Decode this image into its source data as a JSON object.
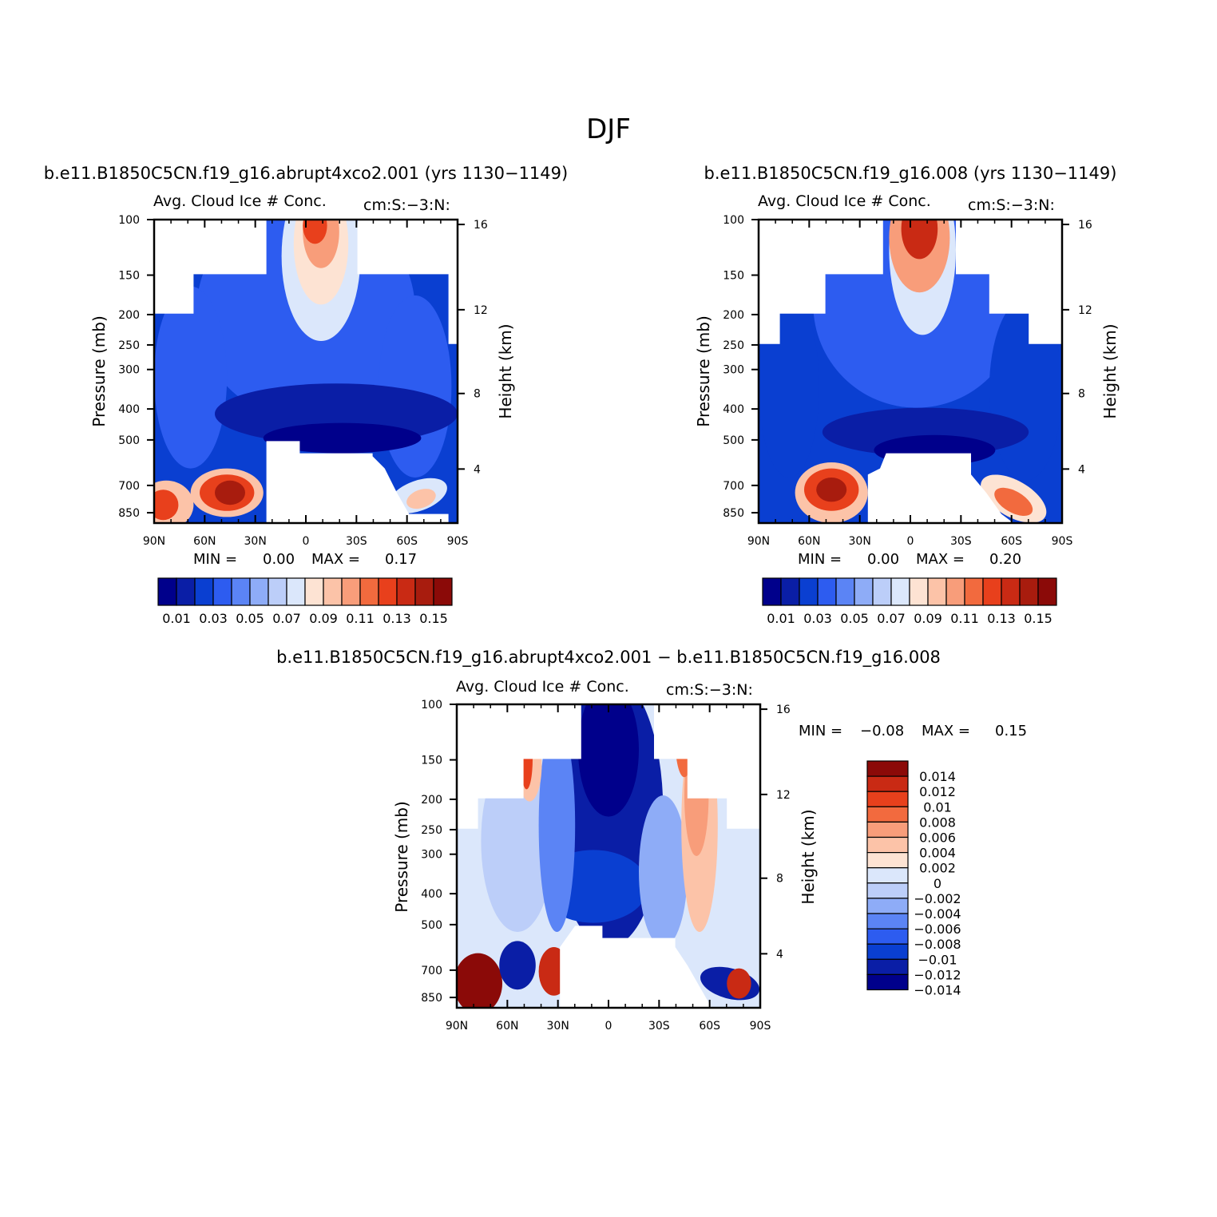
{
  "page_title": "DJF",
  "colors": {
    "seq": [
      "#00008b",
      "#0a1ea6",
      "#0a3fd1",
      "#2d5cf0",
      "#5b84f5",
      "#8eacf7",
      "#bccef9",
      "#dbe7fb",
      "#fde3d3",
      "#fcc3a8",
      "#f89d7a",
      "#f26a3e",
      "#e8401c",
      "#c92a14",
      "#a81c0e",
      "#8b0a08"
    ],
    "diff": [
      "#00008b",
      "#0a1ea6",
      "#0a3fd1",
      "#2d5cf0",
      "#5b84f5",
      "#8eacf7",
      "#bccef9",
      "#dbe7fb",
      "#fde3d3",
      "#fcc3a8",
      "#f89d7a",
      "#f26a3e",
      "#e8401c",
      "#c92a14",
      "#8b0a08"
    ]
  },
  "chart_data": [
    {
      "type": "heatmap",
      "id": "model_4xco2",
      "header": "b.e11.B1850C5CN.f19_g16.abrupt4xco2.001 (yrs 1130−1149)",
      "title": "Avg. Cloud Ice # Conc.",
      "units": "cm:S:−3:N:",
      "ylabel": "Pressure (mb)",
      "y2label": "Height (km)",
      "x_ticks": [
        "90N",
        "60N",
        "30N",
        "0",
        "30S",
        "60S",
        "90S"
      ],
      "y_ticks": [
        "100",
        "150",
        "200",
        "250",
        "300",
        "400",
        "500",
        "700",
        "850"
      ],
      "y2_ticks": [
        "16",
        "12",
        "8",
        "4"
      ],
      "min_label": "MIN =",
      "min_value": "0.00",
      "max_label": "MAX =",
      "max_value": "0.17",
      "min": 0.0,
      "max": 0.17,
      "colorbar_labels": [
        "0.01",
        "0.03",
        "0.05",
        "0.07",
        "0.09",
        "0.11",
        "0.13",
        "0.15"
      ]
    },
    {
      "type": "heatmap",
      "id": "model_control",
      "header": "b.e11.B1850C5CN.f19_g16.008 (yrs 1130−1149)",
      "title": "Avg. Cloud Ice # Conc.",
      "units": "cm:S:−3:N:",
      "ylabel": "Pressure (mb)",
      "y2label": "Height (km)",
      "x_ticks": [
        "90N",
        "60N",
        "30N",
        "0",
        "30S",
        "60S",
        "90S"
      ],
      "y_ticks": [
        "100",
        "150",
        "200",
        "250",
        "300",
        "400",
        "500",
        "700",
        "850"
      ],
      "y2_ticks": [
        "16",
        "12",
        "8",
        "4"
      ],
      "min_label": "MIN =",
      "min_value": "0.00",
      "max_label": "MAX =",
      "max_value": "0.20",
      "min": 0.0,
      "max": 0.2,
      "colorbar_labels": [
        "0.01",
        "0.03",
        "0.05",
        "0.07",
        "0.09",
        "0.11",
        "0.13",
        "0.15"
      ]
    },
    {
      "type": "heatmap",
      "id": "difference",
      "header": "b.e11.B1850C5CN.f19_g16.abrupt4xco2.001 − b.e11.B1850C5CN.f19_g16.008",
      "title": "Avg. Cloud Ice # Conc.",
      "units": "cm:S:−3:N:",
      "ylabel": "Pressure (mb)",
      "y2label": "Height (km)",
      "x_ticks": [
        "90N",
        "60N",
        "30N",
        "0",
        "30S",
        "60S",
        "90S"
      ],
      "y_ticks": [
        "100",
        "150",
        "200",
        "250",
        "300",
        "400",
        "500",
        "700",
        "850"
      ],
      "y2_ticks": [
        "16",
        "12",
        "8",
        "4"
      ],
      "min_label": "MIN =",
      "min_value": "−0.08",
      "max_label": "MAX =",
      "max_value": "0.15",
      "min": -0.08,
      "max": 0.15,
      "colorbar_labels": [
        "0.014",
        "0.012",
        "0.01",
        "0.008",
        "0.006",
        "0.004",
        "0.002",
        "0",
        "−0.002",
        "−0.004",
        "−0.006",
        "−0.008",
        "−0.01",
        "−0.012",
        "−0.014"
      ]
    }
  ]
}
